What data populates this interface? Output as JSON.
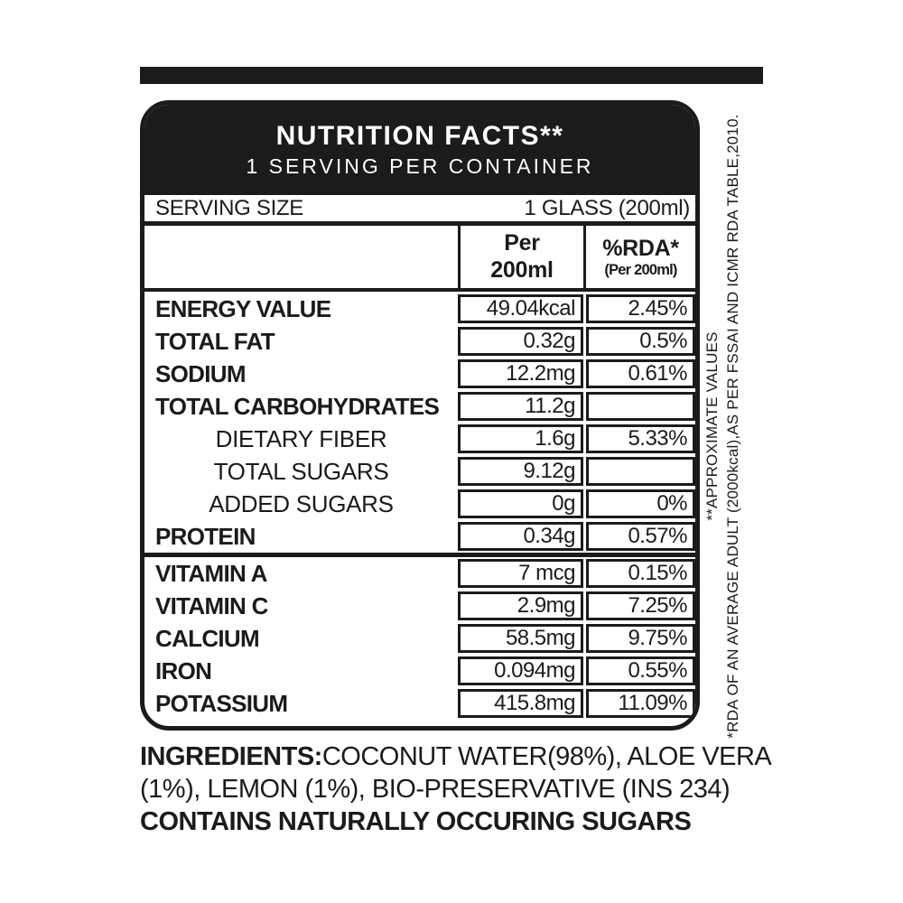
{
  "colors": {
    "ink": "#1b1b1b",
    "paper": "#ffffff"
  },
  "header": {
    "title": "NUTRITION FACTS**",
    "subtitle": "1 SERVING PER CONTAINER"
  },
  "serving": {
    "label": "SERVING SIZE",
    "value": "1 GLASS (200ml)"
  },
  "columns": {
    "value_line1": "Per",
    "value_line2": "200ml",
    "rda_line1": "%RDA*",
    "rda_line2": "(Per 200ml)"
  },
  "table": {
    "rows": [
      {
        "label": "ENERGY VALUE",
        "value": "49.04kcal",
        "rda": "2.45%"
      },
      {
        "label": "TOTAL FAT",
        "value": "0.32g",
        "rda": "0.5%"
      },
      {
        "label": "SODIUM",
        "value": "12.2mg",
        "rda": "0.61%"
      },
      {
        "label": "TOTAL CARBOHYDRATES",
        "value": "11.2g",
        "rda": ""
      },
      {
        "label": "DIETARY FIBER",
        "value": "1.6g",
        "rda": "5.33%"
      },
      {
        "label": "TOTAL SUGARS",
        "value": "9.12g",
        "rda": ""
      },
      {
        "label": "ADDED SUGARS",
        "value": "0g",
        "rda": "0%"
      },
      {
        "label": "PROTEIN",
        "value": "0.34g",
        "rda": "0.57%"
      },
      {
        "label": "VITAMIN A",
        "value": "7 mcg",
        "rda": "0.15%"
      },
      {
        "label": "VITAMIN C",
        "value": "2.9mg",
        "rda": "7.25%"
      },
      {
        "label": "CALCIUM",
        "value": "58.5mg",
        "rda": "9.75%"
      },
      {
        "label": "IRON",
        "value": "0.094mg",
        "rda": "0.55%"
      },
      {
        "label": "POTASSIUM",
        "value": "415.8mg",
        "rda": "11.09%"
      }
    ]
  },
  "side_notes": {
    "approx": "**APPROXIMATE VALUES",
    "rda": "*RDA OF AN AVERAGE ADULT (2000kcal),AS PER FSSAI AND ICMR RDA TABLE,2010."
  },
  "ingredients": {
    "label": "INGREDIENTS:",
    "line1_rest": "COCONUT WATER(98%), ALOE VERA",
    "line2": "(1%), LEMON (1%), BIO-PRESERVATIVE (INS 234)",
    "line3": "CONTAINS NATURALLY OCCURING SUGARS"
  }
}
